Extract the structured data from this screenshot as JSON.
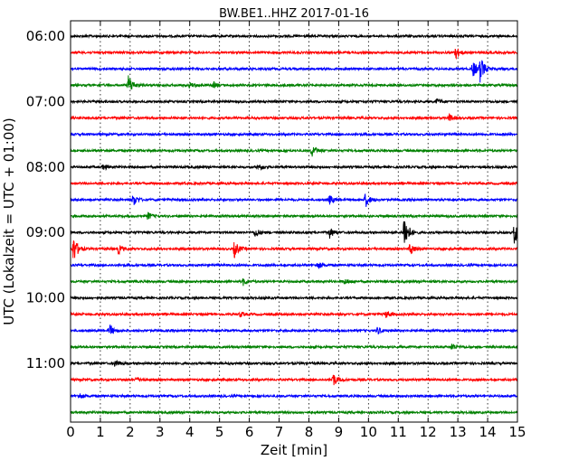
{
  "chart_data": {
    "type": "line",
    "title": "BW.BE1..HHZ 2017-01-16",
    "xlabel": "Zeit  [min]",
    "ylabel": "UTC (Lokalzeit = UTC + 01:00)",
    "xlim": [
      0,
      15
    ],
    "x_ticks": [
      "0",
      "1",
      "2",
      "3",
      "4",
      "5",
      "6",
      "7",
      "8",
      "9",
      "10",
      "11",
      "12",
      "13",
      "14",
      "15"
    ],
    "grid": "vertical dotted lines at each minute",
    "trace_colors": [
      "#000000",
      "#ff0000",
      "#0000ff",
      "#008000"
    ],
    "row_start": "06:00",
    "row_count": 24,
    "row_interval_minutes": 15,
    "hour_labels": [
      {
        "label": "06:00",
        "row": 0
      },
      {
        "label": "07:00",
        "row": 4
      },
      {
        "label": "08:00",
        "row": 8
      },
      {
        "label": "09:00",
        "row": 12
      },
      {
        "label": "10:00",
        "row": 16
      },
      {
        "label": "11:00",
        "row": 20
      }
    ],
    "events": [
      {
        "row": 1,
        "minute": 12.9,
        "amplitude": 8
      },
      {
        "row": 2,
        "minute": 13.5,
        "amplitude": 10
      },
      {
        "row": 2,
        "minute": 13.75,
        "amplitude": 14
      },
      {
        "row": 3,
        "minute": 1.95,
        "amplitude": 12
      },
      {
        "row": 3,
        "minute": 4.0,
        "amplitude": 3
      },
      {
        "row": 3,
        "minute": 4.8,
        "amplitude": 3
      },
      {
        "row": 4,
        "minute": 12.3,
        "amplitude": 3
      },
      {
        "row": 5,
        "minute": 12.7,
        "amplitude": 4
      },
      {
        "row": 7,
        "minute": 8.1,
        "amplitude": 7
      },
      {
        "row": 8,
        "minute": 1.1,
        "amplitude": 3
      },
      {
        "row": 8,
        "minute": 6.3,
        "amplitude": 4
      },
      {
        "row": 10,
        "minute": 2.1,
        "amplitude": 7
      },
      {
        "row": 10,
        "minute": 8.7,
        "amplitude": 5
      },
      {
        "row": 10,
        "minute": 9.9,
        "amplitude": 8
      },
      {
        "row": 11,
        "minute": 2.6,
        "amplitude": 4
      },
      {
        "row": 12,
        "minute": 6.2,
        "amplitude": 5
      },
      {
        "row": 12,
        "minute": 8.7,
        "amplitude": 6
      },
      {
        "row": 12,
        "minute": 11.2,
        "amplitude": 22
      },
      {
        "row": 12,
        "minute": 14.9,
        "amplitude": 14
      },
      {
        "row": 13,
        "minute": 0.1,
        "amplitude": 15
      },
      {
        "row": 13,
        "minute": 1.6,
        "amplitude": 5
      },
      {
        "row": 13,
        "minute": 5.5,
        "amplitude": 9
      },
      {
        "row": 13,
        "minute": 11.4,
        "amplitude": 7
      },
      {
        "row": 14,
        "minute": 8.3,
        "amplitude": 4
      },
      {
        "row": 15,
        "minute": 5.8,
        "amplitude": 4
      },
      {
        "row": 15,
        "minute": 9.2,
        "amplitude": 3
      },
      {
        "row": 17,
        "minute": 5.7,
        "amplitude": 3
      },
      {
        "row": 17,
        "minute": 10.6,
        "amplitude": 4
      },
      {
        "row": 18,
        "minute": 1.3,
        "amplitude": 7
      },
      {
        "row": 18,
        "minute": 10.3,
        "amplitude": 4
      },
      {
        "row": 19,
        "minute": 12.8,
        "amplitude": 4
      },
      {
        "row": 20,
        "minute": 1.5,
        "amplitude": 4
      },
      {
        "row": 21,
        "minute": 2.2,
        "amplitude": 3
      },
      {
        "row": 21,
        "minute": 8.8,
        "amplitude": 8
      },
      {
        "row": 22,
        "minute": 0.3,
        "amplitude": 3
      }
    ]
  }
}
